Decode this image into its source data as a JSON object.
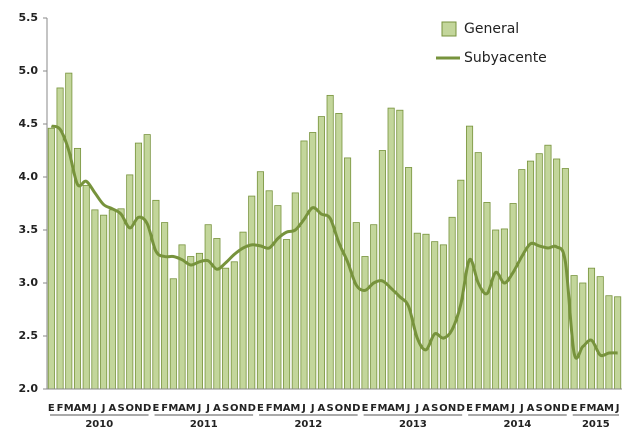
{
  "chart_data": {
    "type": "bar+line",
    "categories": [
      "E",
      "F",
      "M",
      "A",
      "M",
      "J",
      "J",
      "A",
      "S",
      "O",
      "N",
      "D",
      "E",
      "F",
      "M",
      "A",
      "M",
      "J",
      "J",
      "A",
      "S",
      "O",
      "N",
      "D",
      "E",
      "F",
      "M",
      "A",
      "M",
      "J",
      "J",
      "A",
      "S",
      "O",
      "N",
      "D",
      "E",
      "F",
      "M",
      "A",
      "M",
      "J",
      "J",
      "A",
      "S",
      "O",
      "N",
      "D",
      "E",
      "F",
      "M",
      "A",
      "M",
      "J",
      "J",
      "A",
      "S",
      "O",
      "N",
      "D",
      "E",
      "F",
      "M",
      "A",
      "M",
      "J"
    ],
    "years": [
      "2010",
      "2011",
      "2012",
      "2013",
      "2014",
      "2015"
    ],
    "series": [
      {
        "name": "General",
        "type": "bar",
        "color": "#c3d69b",
        "edge": "#77933c",
        "values": [
          4.46,
          4.84,
          4.98,
          4.27,
          3.92,
          3.69,
          3.64,
          3.69,
          3.7,
          4.02,
          4.32,
          4.4,
          3.78,
          3.57,
          3.04,
          3.36,
          3.25,
          3.28,
          3.55,
          3.42,
          3.14,
          3.2,
          3.48,
          3.82,
          4.05,
          3.87,
          3.73,
          3.41,
          3.85,
          4.34,
          4.42,
          4.57,
          4.77,
          4.6,
          4.18,
          3.57,
          3.25,
          3.55,
          4.25,
          4.65,
          4.63,
          4.09,
          3.47,
          3.46,
          3.39,
          3.36,
          3.62,
          3.97,
          4.48,
          4.23,
          3.76,
          3.5,
          3.51,
          3.75,
          4.07,
          4.15,
          4.22,
          4.3,
          4.17,
          4.08,
          3.07,
          3.0,
          3.14,
          3.06,
          2.88,
          2.87
        ]
      },
      {
        "name": "Subyacente",
        "type": "line",
        "color": "#77933c",
        "values": [
          4.48,
          4.45,
          4.25,
          3.93,
          3.96,
          3.85,
          3.74,
          3.7,
          3.65,
          3.52,
          3.62,
          3.56,
          3.3,
          3.25,
          3.25,
          3.22,
          3.17,
          3.2,
          3.21,
          3.13,
          3.19,
          3.27,
          3.33,
          3.36,
          3.35,
          3.33,
          3.42,
          3.48,
          3.5,
          3.6,
          3.71,
          3.65,
          3.61,
          3.38,
          3.2,
          2.98,
          2.93,
          3.0,
          3.02,
          2.95,
          2.87,
          2.78,
          2.48,
          2.37,
          2.52,
          2.48,
          2.56,
          2.8,
          3.22,
          3.0,
          2.9,
          3.1,
          3.0,
          3.1,
          3.25,
          3.37,
          3.35,
          3.33,
          3.34,
          3.2,
          2.34,
          2.4,
          2.46,
          2.32,
          2.34,
          2.34
        ]
      }
    ],
    "ylim": [
      2.0,
      5.5
    ],
    "yticks": [
      {
        "value": 2,
        "label": "2.0"
      },
      {
        "value": 2.5,
        "label": "2.5"
      },
      {
        "value": 3,
        "label": "3.0"
      },
      {
        "value": 3.5,
        "label": "3.5"
      },
      {
        "value": 4,
        "label": "4.0"
      },
      {
        "value": 4.5,
        "label": "4.5"
      },
      {
        "value": 5,
        "label": "5.0"
      },
      {
        "value": 5.5,
        "label": "5.5"
      }
    ],
    "legend": "upper right"
  }
}
